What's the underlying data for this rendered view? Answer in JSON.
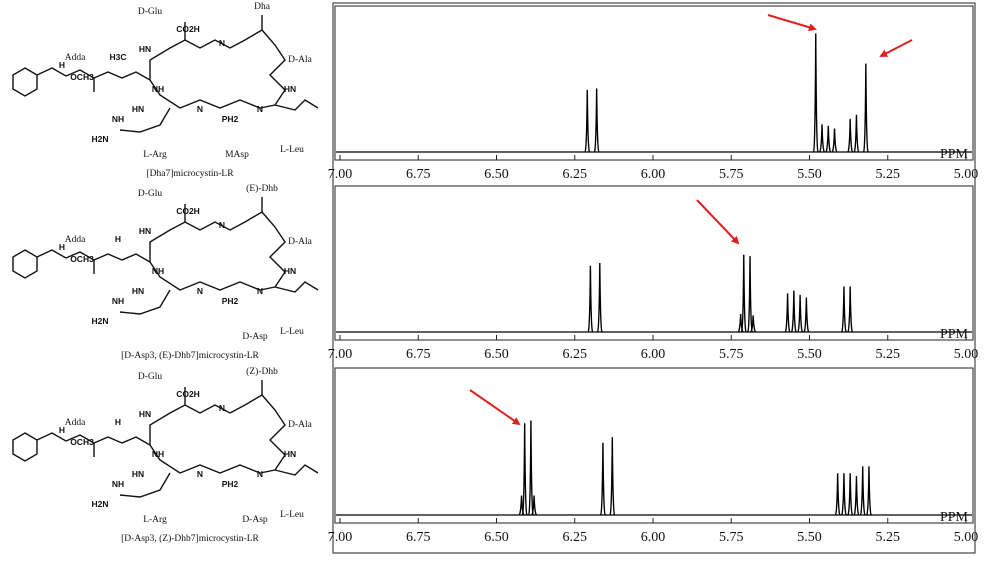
{
  "chart_data": [
    {
      "type": "spectrum",
      "xlabel": "PPM",
      "color": "#000000",
      "xlim": [
        7,
        5
      ],
      "ylim": [
        0,
        1
      ],
      "xticks": [
        {
          "value": 7,
          "label": "7.00"
        },
        {
          "value": 6.75,
          "label": "6.75"
        },
        {
          "value": 6.5,
          "label": "6.50"
        },
        {
          "value": 6.25,
          "label": "6.25"
        },
        {
          "value": 6,
          "label": "6.00"
        },
        {
          "value": 5.75,
          "label": "5.75"
        },
        {
          "value": 5.5,
          "label": "5.50"
        },
        {
          "value": 5.25,
          "label": "5.25"
        },
        {
          "value": 5,
          "label": "5.00"
        }
      ],
      "x": [
        6.21,
        6.18,
        5.48,
        5.46,
        5.44,
        5.42,
        5.37,
        5.35,
        5.32
      ],
      "values": [
        0.45,
        0.46,
        0.86,
        0.2,
        0.19,
        0.17,
        0.24,
        0.27,
        0.64
      ]
    },
    {
      "type": "spectrum",
      "xlabel": "PPM",
      "color": "#000000",
      "xlim": [
        7,
        5
      ],
      "ylim": [
        0,
        1
      ],
      "xticks": [
        {
          "value": 7,
          "label": "7.00"
        },
        {
          "value": 6.75,
          "label": "6.75"
        },
        {
          "value": 6.5,
          "label": "6.50"
        },
        {
          "value": 6.25,
          "label": "6.25"
        },
        {
          "value": 6,
          "label": "6.00"
        },
        {
          "value": 5.75,
          "label": "5.75"
        },
        {
          "value": 5.5,
          "label": "5.50"
        },
        {
          "value": 5.25,
          "label": "5.25"
        },
        {
          "value": 5,
          "label": "5.00"
        }
      ],
      "x": [
        6.2,
        6.17,
        5.72,
        5.71,
        5.69,
        5.68,
        5.57,
        5.55,
        5.53,
        5.51,
        5.39,
        5.37
      ],
      "values": [
        0.48,
        0.5,
        0.13,
        0.56,
        0.55,
        0.12,
        0.28,
        0.3,
        0.27,
        0.25,
        0.33,
        0.33
      ]
    },
    {
      "type": "spectrum",
      "xlabel": "PPM",
      "color": "#000000",
      "xlim": [
        7,
        5
      ],
      "ylim": [
        0,
        1
      ],
      "xticks": [
        {
          "value": 7,
          "label": "7.00"
        },
        {
          "value": 6.75,
          "label": "6.75"
        },
        {
          "value": 6.5,
          "label": "6.50"
        },
        {
          "value": 6.25,
          "label": "6.25"
        },
        {
          "value": 6,
          "label": "6.00"
        },
        {
          "value": 5.75,
          "label": "5.75"
        },
        {
          "value": 5.5,
          "label": "5.50"
        },
        {
          "value": 5.25,
          "label": "5.25"
        },
        {
          "value": 5,
          "label": "5.00"
        }
      ],
      "x": [
        6.42,
        6.41,
        6.39,
        6.38,
        6.16,
        6.13,
        5.41,
        5.39,
        5.37,
        5.35,
        5.33,
        5.31
      ],
      "values": [
        0.14,
        0.66,
        0.68,
        0.14,
        0.52,
        0.56,
        0.3,
        0.3,
        0.3,
        0.28,
        0.35,
        0.35
      ]
    }
  ],
  "structures": [
    {
      "residues": [
        "D-Glu",
        "Dha",
        "Adda",
        "D-Ala",
        "L-Arg",
        "MAsp",
        "L-Leu"
      ],
      "caption": "[Dha7]microcystin-LR",
      "atoms": [
        "CO2H",
        "HN",
        "N",
        "H3C",
        "OCH3",
        "H",
        "NH",
        "HN",
        "N",
        "PH2",
        "N",
        "H2N",
        "NH",
        "HN"
      ]
    },
    {
      "residues": [
        "D-Glu",
        "(E)-Dhb",
        "Adda",
        "D-Ala",
        "D-Asp",
        "L-Leu"
      ],
      "caption": "[D-Asp3, (E)-Dhb7]microcystin-LR",
      "atoms": [
        "CO2H",
        "HN",
        "N",
        "H",
        "OCH3",
        "H",
        "NH",
        "HN",
        "N",
        "PH2",
        "N",
        "H2N",
        "NH",
        "HN"
      ]
    },
    {
      "residues": [
        "D-Glu",
        "(Z)-Dhb",
        "Adda",
        "D-Ala",
        "L-Arg",
        "D-Asp",
        "L-Leu"
      ],
      "caption": "[D-Asp3, (Z)-Dhb7]microcystin-LR",
      "atoms": [
        "CO2H",
        "HN",
        "N",
        "H",
        "OCH3",
        "H",
        "NH",
        "HN",
        "N",
        "PH2",
        "N",
        "H2N",
        "NH",
        "HN"
      ]
    }
  ]
}
